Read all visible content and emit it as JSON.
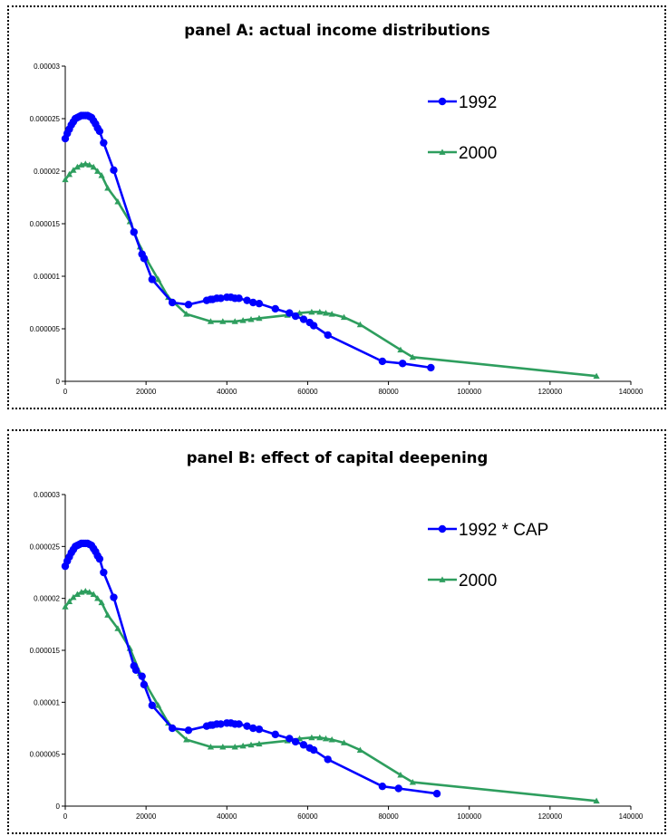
{
  "colors": {
    "series_1992": "#0000ff",
    "series_2000": "#2e9e5e"
  },
  "chart_data": [
    {
      "type": "line",
      "title": "panel A: actual income distributions",
      "xlabel": "",
      "ylabel": "",
      "xlim": [
        0,
        140000
      ],
      "ylim": [
        0,
        3e-05
      ],
      "xticks": [
        "0",
        "20000",
        "40000",
        "60000",
        "80000",
        "100000",
        "120000",
        "140000"
      ],
      "yticks": [
        "0",
        "0.000005",
        "0.00001",
        "0.000015",
        "0.00002",
        "0.000025",
        "0.00003"
      ],
      "grid": false,
      "legend_position": "top-right",
      "series": [
        {
          "name": "1992",
          "marker": "circle",
          "color": "#0000ff",
          "points": [
            [
              0,
              2.31e-05
            ],
            [
              500,
              2.36e-05
            ],
            [
              1000,
              2.4e-05
            ],
            [
              1500,
              2.44e-05
            ],
            [
              2000,
              2.47e-05
            ],
            [
              2500,
              2.5e-05
            ],
            [
              3000,
              2.51e-05
            ],
            [
              3500,
              2.52e-05
            ],
            [
              4000,
              2.53e-05
            ],
            [
              4500,
              2.53e-05
            ],
            [
              5000,
              2.53e-05
            ],
            [
              5500,
              2.53e-05
            ],
            [
              6000,
              2.52e-05
            ],
            [
              6500,
              2.51e-05
            ],
            [
              7000,
              2.48e-05
            ],
            [
              7500,
              2.45e-05
            ],
            [
              8000,
              2.41e-05
            ],
            [
              8500,
              2.38e-05
            ],
            [
              9500,
              2.27e-05
            ],
            [
              12000,
              2.01e-05
            ],
            [
              17000,
              1.42e-05
            ],
            [
              19000,
              1.21e-05
            ],
            [
              19500,
              1.17e-05
            ],
            [
              21500,
              9.7e-06
            ],
            [
              26500,
              7.5e-06
            ],
            [
              30500,
              7.3e-06
            ],
            [
              35000,
              7.7e-06
            ],
            [
              36000,
              7.8e-06
            ],
            [
              36500,
              7.8e-06
            ],
            [
              37500,
              7.9e-06
            ],
            [
              38500,
              7.9e-06
            ],
            [
              40000,
              8e-06
            ],
            [
              41000,
              8e-06
            ],
            [
              42000,
              7.9e-06
            ],
            [
              43000,
              7.9e-06
            ],
            [
              45000,
              7.7e-06
            ],
            [
              46500,
              7.5e-06
            ],
            [
              48000,
              7.4e-06
            ],
            [
              52000,
              6.9e-06
            ],
            [
              55500,
              6.5e-06
            ],
            [
              57000,
              6.2e-06
            ],
            [
              59000,
              5.9e-06
            ],
            [
              60500,
              5.6e-06
            ],
            [
              61500,
              5.3e-06
            ],
            [
              65000,
              4.4e-06
            ],
            [
              78500,
              1.9e-06
            ],
            [
              83500,
              1.7e-06
            ],
            [
              90500,
              1.3e-06
            ]
          ]
        },
        {
          "name": "2000",
          "marker": "triangle",
          "color": "#2e9e5e",
          "points": [
            [
              0,
              1.92e-05
            ],
            [
              1000,
              1.97e-05
            ],
            [
              2000,
              2.01e-05
            ],
            [
              3000,
              2.04e-05
            ],
            [
              4000,
              2.06e-05
            ],
            [
              5000,
              2.07e-05
            ],
            [
              6000,
              2.06e-05
            ],
            [
              7000,
              2.04e-05
            ],
            [
              8000,
              2e-05
            ],
            [
              9000,
              1.96e-05
            ],
            [
              10500,
              1.84e-05
            ],
            [
              13000,
              1.71e-05
            ],
            [
              16000,
              1.52e-05
            ],
            [
              18500,
              1.28e-05
            ],
            [
              20000,
              1.17e-05
            ],
            [
              23000,
              9.7e-06
            ],
            [
              25500,
              8e-06
            ],
            [
              30000,
              6.4e-06
            ],
            [
              36000,
              5.7e-06
            ],
            [
              39000,
              5.7e-06
            ],
            [
              42000,
              5.7e-06
            ],
            [
              44000,
              5.8e-06
            ],
            [
              46000,
              5.9e-06
            ],
            [
              48000,
              6e-06
            ],
            [
              55000,
              6.3e-06
            ],
            [
              58000,
              6.5e-06
            ],
            [
              61000,
              6.6e-06
            ],
            [
              63000,
              6.6e-06
            ],
            [
              64500,
              6.5e-06
            ],
            [
              66000,
              6.4e-06
            ],
            [
              69000,
              6.1e-06
            ],
            [
              73000,
              5.4e-06
            ],
            [
              83000,
              3e-06
            ],
            [
              86000,
              2.3e-06
            ],
            [
              131500,
              5e-07
            ]
          ]
        }
      ]
    },
    {
      "type": "line",
      "title": "panel B: effect of capital deepening",
      "xlabel": "",
      "ylabel": "",
      "xlim": [
        0,
        140000
      ],
      "ylim": [
        0,
        3e-05
      ],
      "xticks": [
        "0",
        "20000",
        "40000",
        "60000",
        "80000",
        "100000",
        "120000",
        "140000"
      ],
      "yticks": [
        "0",
        "0.000005",
        "0.00001",
        "0.000015",
        "0.00002",
        "0.000025",
        "0.00003"
      ],
      "grid": false,
      "legend_position": "top-right",
      "series": [
        {
          "name": "1992 * CAP",
          "marker": "circle",
          "color": "#0000ff",
          "points": [
            [
              0,
              2.31e-05
            ],
            [
              500,
              2.36e-05
            ],
            [
              1000,
              2.4e-05
            ],
            [
              1500,
              2.44e-05
            ],
            [
              2000,
              2.47e-05
            ],
            [
              2500,
              2.5e-05
            ],
            [
              3000,
              2.51e-05
            ],
            [
              3500,
              2.52e-05
            ],
            [
              4000,
              2.53e-05
            ],
            [
              4500,
              2.53e-05
            ],
            [
              5000,
              2.53e-05
            ],
            [
              5500,
              2.53e-05
            ],
            [
              6000,
              2.52e-05
            ],
            [
              6500,
              2.51e-05
            ],
            [
              7000,
              2.48e-05
            ],
            [
              7500,
              2.45e-05
            ],
            [
              8000,
              2.41e-05
            ],
            [
              8500,
              2.38e-05
            ],
            [
              9500,
              2.25e-05
            ],
            [
              12000,
              2.01e-05
            ],
            [
              17000,
              1.35e-05
            ],
            [
              17500,
              1.31e-05
            ],
            [
              19000,
              1.25e-05
            ],
            [
              19500,
              1.17e-05
            ],
            [
              21500,
              9.7e-06
            ],
            [
              26500,
              7.5e-06
            ],
            [
              30500,
              7.3e-06
            ],
            [
              35000,
              7.7e-06
            ],
            [
              36000,
              7.8e-06
            ],
            [
              36500,
              7.8e-06
            ],
            [
              37500,
              7.9e-06
            ],
            [
              38500,
              7.9e-06
            ],
            [
              40000,
              8e-06
            ],
            [
              41000,
              8e-06
            ],
            [
              42000,
              7.9e-06
            ],
            [
              43000,
              7.9e-06
            ],
            [
              45000,
              7.7e-06
            ],
            [
              46500,
              7.5e-06
            ],
            [
              48000,
              7.4e-06
            ],
            [
              52000,
              6.9e-06
            ],
            [
              55500,
              6.5e-06
            ],
            [
              57000,
              6.2e-06
            ],
            [
              59000,
              5.9e-06
            ],
            [
              60500,
              5.6e-06
            ],
            [
              61500,
              5.4e-06
            ],
            [
              65000,
              4.5e-06
            ],
            [
              78500,
              1.9e-06
            ],
            [
              82500,
              1.7e-06
            ],
            [
              92000,
              1.2e-06
            ]
          ]
        },
        {
          "name": "2000",
          "marker": "triangle",
          "color": "#2e9e5e",
          "points": [
            [
              0,
              1.92e-05
            ],
            [
              1000,
              1.97e-05
            ],
            [
              2000,
              2.01e-05
            ],
            [
              3000,
              2.04e-05
            ],
            [
              4000,
              2.06e-05
            ],
            [
              5000,
              2.07e-05
            ],
            [
              6000,
              2.06e-05
            ],
            [
              7000,
              2.04e-05
            ],
            [
              8000,
              2e-05
            ],
            [
              9000,
              1.96e-05
            ],
            [
              10500,
              1.84e-05
            ],
            [
              13000,
              1.71e-05
            ],
            [
              16000,
              1.52e-05
            ],
            [
              18500,
              1.28e-05
            ],
            [
              20000,
              1.17e-05
            ],
            [
              23000,
              9.7e-06
            ],
            [
              25500,
              8e-06
            ],
            [
              30000,
              6.4e-06
            ],
            [
              36000,
              5.7e-06
            ],
            [
              39000,
              5.7e-06
            ],
            [
              42000,
              5.7e-06
            ],
            [
              44000,
              5.8e-06
            ],
            [
              46000,
              5.9e-06
            ],
            [
              48000,
              6e-06
            ],
            [
              55000,
              6.3e-06
            ],
            [
              58000,
              6.5e-06
            ],
            [
              61000,
              6.6e-06
            ],
            [
              63000,
              6.6e-06
            ],
            [
              64500,
              6.5e-06
            ],
            [
              66000,
              6.4e-06
            ],
            [
              69000,
              6.1e-06
            ],
            [
              73000,
              5.4e-06
            ],
            [
              83000,
              3e-06
            ],
            [
              86000,
              2.3e-06
            ],
            [
              131500,
              5e-07
            ]
          ]
        }
      ]
    }
  ]
}
